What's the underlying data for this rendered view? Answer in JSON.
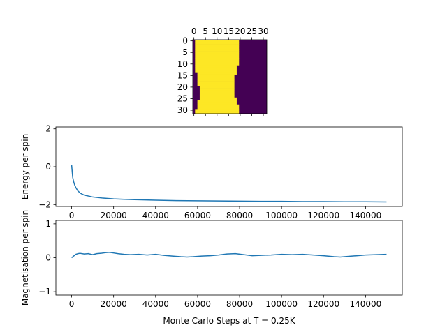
{
  "chart_data": [
    {
      "type": "heatmap",
      "description_shape": "32x32 spin lattice",
      "x_ticks": [
        "0",
        "5",
        "10",
        "15",
        "20",
        "25",
        "30"
      ],
      "y_ticks": [
        "0",
        "5",
        "10",
        "15",
        "20",
        "25",
        "30"
      ],
      "colors": {
        "up": "#fde725",
        "down": "#440154"
      },
      "rows": 32,
      "cols": 32,
      "domain_boundary_left": [
        1,
        1,
        1,
        1,
        1,
        1,
        1,
        1,
        1,
        1,
        1,
        1,
        1,
        1,
        2,
        2,
        2,
        2,
        2,
        2,
        3,
        3,
        3,
        3,
        3,
        3,
        2,
        2,
        2,
        2,
        1,
        1
      ],
      "domain_boundary_right": [
        19,
        19,
        19,
        19,
        19,
        19,
        19,
        19,
        19,
        19,
        19,
        18,
        18,
        18,
        18,
        17,
        17,
        17,
        17,
        17,
        17,
        17,
        17,
        17,
        17,
        18,
        18,
        18,
        19,
        19,
        19,
        19
      ]
    },
    {
      "type": "line",
      "ylabel": "Energy per spin",
      "xlim": [
        -7500,
        157500
      ],
      "ylim": [
        -2.1,
        2.1
      ],
      "x_ticks": [
        0,
        20000,
        40000,
        60000,
        80000,
        100000,
        120000,
        140000
      ],
      "y_ticks": [
        -2,
        0,
        2
      ],
      "series": [
        {
          "x": [
            0,
            500,
            1000,
            1500,
            2000,
            3000,
            4000,
            5000,
            6000,
            8000,
            10000,
            15000,
            20000,
            25000,
            30000,
            40000,
            50000,
            60000,
            70000,
            80000,
            90000,
            100000,
            110000,
            120000,
            130000,
            140000,
            150000
          ],
          "y": [
            0.1,
            -0.55,
            -0.8,
            -0.98,
            -1.1,
            -1.28,
            -1.38,
            -1.45,
            -1.5,
            -1.55,
            -1.6,
            -1.66,
            -1.7,
            -1.72,
            -1.74,
            -1.77,
            -1.79,
            -1.8,
            -1.81,
            -1.82,
            -1.83,
            -1.83,
            -1.84,
            -1.84,
            -1.85,
            -1.85,
            -1.86
          ]
        }
      ]
    },
    {
      "type": "line",
      "ylabel": "Magnetisation per spin",
      "xlabel": "Monte Carlo Steps at T = 0.25K",
      "xlim": [
        -7500,
        157500
      ],
      "ylim": [
        -1.1,
        1.1
      ],
      "x_ticks": [
        0,
        20000,
        40000,
        60000,
        80000,
        100000,
        120000,
        140000
      ],
      "y_ticks": [
        -1,
        0,
        1
      ],
      "series": [
        {
          "x": [
            0,
            1000,
            2000,
            3000,
            4000,
            6000,
            8000,
            10000,
            12000,
            14000,
            16000,
            18000,
            20000,
            22000,
            25000,
            28000,
            32000,
            36000,
            40000,
            44000,
            48000,
            52000,
            55000,
            58000,
            62000,
            66000,
            70000,
            74000,
            78000,
            82000,
            86000,
            90000,
            95000,
            100000,
            105000,
            110000,
            115000,
            120000,
            125000,
            128000,
            132000,
            136000,
            140000,
            145000,
            150000
          ],
          "y": [
            0.0,
            0.05,
            0.1,
            0.12,
            0.13,
            0.11,
            0.12,
            0.09,
            0.12,
            0.13,
            0.15,
            0.16,
            0.14,
            0.12,
            0.1,
            0.09,
            0.1,
            0.08,
            0.1,
            0.07,
            0.05,
            0.03,
            0.02,
            0.03,
            0.05,
            0.06,
            0.08,
            0.11,
            0.12,
            0.09,
            0.06,
            0.07,
            0.08,
            0.1,
            0.09,
            0.1,
            0.08,
            0.06,
            0.03,
            0.02,
            0.04,
            0.06,
            0.08,
            0.09,
            0.1
          ]
        }
      ]
    }
  ]
}
